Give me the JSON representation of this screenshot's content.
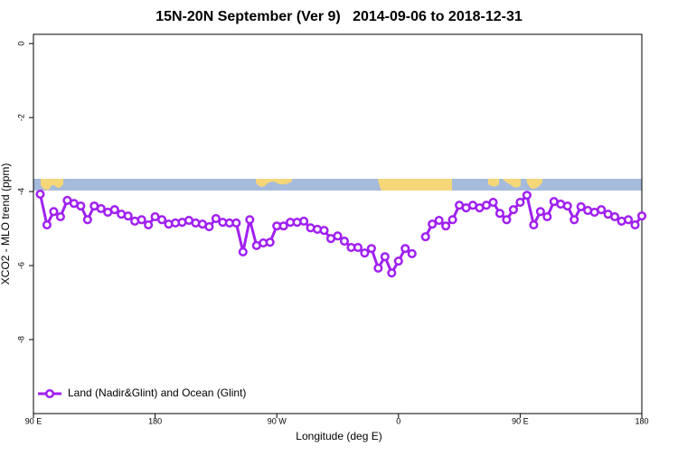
{
  "chart_data": {
    "type": "line",
    "title": "15N-20N September (Ver 9)   2014-09-06 to 2018-12-31",
    "x_label": "Longitude (deg E)",
    "y_label": "XCO2 - MLO trend (ppm)",
    "xlim": [
      90,
      540
    ],
    "xticks": [
      {
        "value": 90,
        "label": "90 E"
      },
      180,
      {
        "value": 270,
        "label": "90 W"
      },
      {
        "value": 360,
        "label": "0"
      },
      {
        "value": 450,
        "label": "90 E"
      },
      {
        "value": 540,
        "label": "180"
      }
    ],
    "ylim": [
      -10,
      0.25
    ],
    "yticks": [
      0,
      -2,
      -4,
      -6,
      -8
    ],
    "legend": "lower left",
    "x": [
      95,
      100,
      105,
      110,
      115,
      120,
      125,
      130,
      135,
      140,
      145,
      150,
      155,
      160,
      165,
      170,
      175,
      180,
      185,
      190,
      195,
      200,
      205,
      210,
      215,
      220,
      225,
      230,
      235,
      240,
      245,
      250,
      255,
      260,
      265,
      270,
      275,
      280,
      285,
      290,
      295,
      300,
      305,
      310,
      315,
      320,
      325,
      330,
      335,
      340,
      345,
      350,
      355,
      360,
      365,
      370,
      375,
      380,
      385,
      390,
      395,
      400,
      405,
      410,
      415,
      420,
      425,
      430,
      435,
      440,
      445,
      450,
      455,
      460,
      465,
      470,
      475,
      480,
      485,
      490,
      495,
      500,
      505,
      510,
      515,
      520,
      525,
      530,
      535,
      540
    ],
    "series": [
      {
        "name": "Land (Nadir&Glint) and Ocean (Glint)",
        "color": "#a020f0",
        "values": [
          -4.07,
          -4.9,
          -4.54,
          -4.68,
          -4.24,
          -4.32,
          -4.39,
          -4.76,
          -4.39,
          -4.46,
          -4.56,
          -4.49,
          -4.61,
          -4.66,
          -4.8,
          -4.76,
          -4.9,
          -4.68,
          -4.76,
          -4.88,
          -4.85,
          -4.83,
          -4.78,
          -4.85,
          -4.88,
          -4.95,
          -4.73,
          -4.83,
          -4.85,
          -4.85,
          -5.63,
          -4.76,
          -5.46,
          -5.39,
          -5.37,
          -4.93,
          -4.93,
          -4.83,
          -4.83,
          -4.8,
          -4.98,
          -5.02,
          -5.05,
          -5.27,
          -5.2,
          -5.34,
          -5.51,
          -5.51,
          -5.66,
          -5.54,
          -6.07,
          -5.76,
          -6.2,
          -5.88,
          -5.54,
          -5.68,
          null,
          -5.22,
          -4.88,
          -4.78,
          -4.93,
          -4.76,
          -4.37,
          -4.44,
          -4.37,
          -4.44,
          -4.37,
          -4.29,
          -4.59,
          -4.76,
          -4.49,
          -4.29,
          -4.1,
          -4.9,
          -4.54,
          -4.68,
          -4.27,
          -4.34,
          -4.39,
          -4.76,
          -4.41,
          -4.51,
          -4.56,
          -4.49,
          -4.61,
          -4.68,
          -4.8,
          -4.76,
          -4.9,
          -4.66
        ]
      }
    ]
  }
}
